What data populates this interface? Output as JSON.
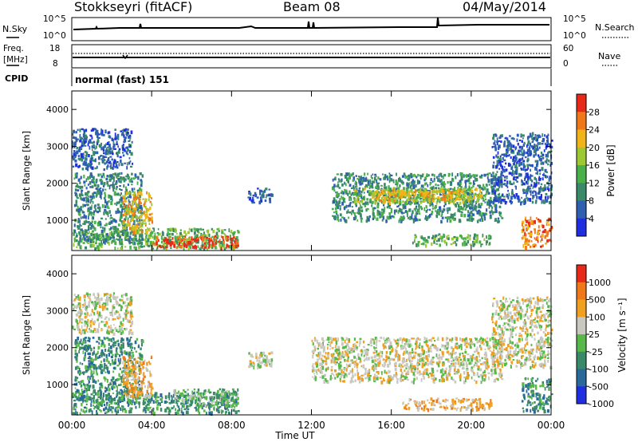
{
  "header": {
    "station": "Stokkseyri (fitACF)",
    "beam": "Beam 08",
    "date": "04/May/2014"
  },
  "noise_panel": {
    "left_label": "N.Sky",
    "right_label": "N.Search",
    "left_ticks": [
      "10^5",
      "10^0"
    ],
    "right_ticks": [
      "10^5",
      "10^0"
    ]
  },
  "freq_panel": {
    "left_label_1": "Freq.",
    "left_label_2": "[MHz]",
    "right_label": "Nave",
    "left_ticks": [
      "18",
      "8"
    ],
    "right_ticks": [
      "60",
      "0"
    ]
  },
  "cpid_panel": {
    "label": "CPID",
    "value": "normal (fast) 151"
  },
  "x_axis": {
    "label": "Time UT",
    "ticks": [
      "00:00",
      "04:00",
      "08:00",
      "12:00",
      "16:00",
      "20:00",
      "00:00"
    ]
  },
  "colors": {
    "power": [
      "#1f2fe0",
      "#2f5fb0",
      "#3a8a6a",
      "#4ab04a",
      "#9cc832",
      "#f0b418",
      "#f07818",
      "#e82818"
    ],
    "velocity": [
      "#1f2fe0",
      "#2a6a9a",
      "#3a8a6a",
      "#58b84a",
      "#c8c8c0",
      "#f0a020",
      "#f07818",
      "#e82818"
    ]
  },
  "chart_data": [
    {
      "type": "heatmap",
      "ylabel": "Slant Range [km]",
      "xlabel": "",
      "ylim": [
        180,
        4500
      ],
      "xlim_hours": [
        0,
        24
      ],
      "yticks": [
        "1000",
        "2000",
        "3000",
        "4000"
      ],
      "colorbar": {
        "label": "Power [dB]",
        "ticks": [
          "28",
          "24",
          "20",
          "16",
          "12",
          "8",
          "4"
        ]
      },
      "regions": [
        {
          "t0": 0.0,
          "t1": 8.3,
          "r0": 250,
          "r1": 800,
          "level": 3
        },
        {
          "t0": 4.0,
          "t1": 8.3,
          "r0": 280,
          "r1": 600,
          "level": 7
        },
        {
          "t0": 0.1,
          "t1": 3.5,
          "r0": 400,
          "r1": 2300,
          "level": 2
        },
        {
          "t0": 2.5,
          "t1": 4.0,
          "r0": 700,
          "r1": 1800,
          "level": 5
        },
        {
          "t0": 0.0,
          "t1": 3.0,
          "r0": 2400,
          "r1": 3500,
          "level": 1
        },
        {
          "t0": 8.8,
          "t1": 10.0,
          "r0": 1500,
          "r1": 1900,
          "level": 1
        },
        {
          "t0": 13.0,
          "t1": 21.5,
          "r0": 1000,
          "r1": 2300,
          "level": 2
        },
        {
          "t0": 14.0,
          "t1": 20.5,
          "r0": 1500,
          "r1": 1900,
          "level": 4
        },
        {
          "t0": 15.0,
          "t1": 19.5,
          "r0": 1550,
          "r1": 1850,
          "level": 5
        },
        {
          "t0": 21.0,
          "t1": 24.0,
          "r0": 1500,
          "r1": 3400,
          "level": 1
        },
        {
          "t0": 22.5,
          "t1": 24.0,
          "r0": 300,
          "r1": 1100,
          "level": 6
        },
        {
          "t0": 17.0,
          "t1": 21.0,
          "r0": 350,
          "r1": 650,
          "level": 3
        }
      ]
    },
    {
      "type": "heatmap",
      "ylabel": "Slant Range [km]",
      "xlabel": "Time UT",
      "ylim": [
        180,
        4500
      ],
      "xlim_hours": [
        0,
        24
      ],
      "yticks": [
        "1000",
        "2000",
        "3000",
        "4000"
      ],
      "colorbar": {
        "label": "Velocity [m s⁻¹]",
        "ticks": [
          "1000",
          "500",
          "100",
          "25",
          "-25",
          "-100",
          "-500",
          "-1000"
        ]
      },
      "regions": [
        {
          "t0": 0.0,
          "t1": 8.3,
          "r0": 250,
          "r1": 800,
          "level": 2
        },
        {
          "t0": 5.0,
          "t1": 8.3,
          "r0": 450,
          "r1": 900,
          "level": 3
        },
        {
          "t0": 0.1,
          "t1": 3.5,
          "r0": 600,
          "r1": 2300,
          "level": 2
        },
        {
          "t0": 2.5,
          "t1": 4.0,
          "r0": 700,
          "r1": 1800,
          "level": 5
        },
        {
          "t0": 0.0,
          "t1": 3.0,
          "r0": 2400,
          "r1": 3500,
          "level": 4
        },
        {
          "t0": 8.8,
          "t1": 10.0,
          "r0": 1500,
          "r1": 1900,
          "level": 4
        },
        {
          "t0": 12.0,
          "t1": 21.5,
          "r0": 1100,
          "r1": 2300,
          "level": 4
        },
        {
          "t0": 21.0,
          "t1": 24.0,
          "r0": 1500,
          "r1": 3400,
          "level": 4
        },
        {
          "t0": 22.5,
          "t1": 24.0,
          "r0": 300,
          "r1": 1200,
          "level": 2
        },
        {
          "t0": 16.5,
          "t1": 21.0,
          "r0": 350,
          "r1": 650,
          "level": 5
        }
      ]
    }
  ]
}
